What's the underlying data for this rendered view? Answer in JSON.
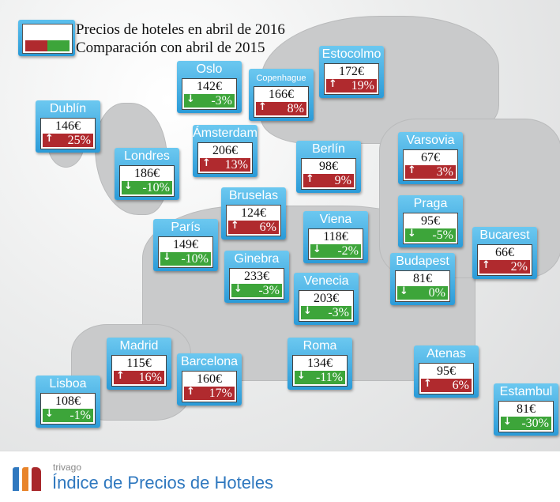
{
  "legend": {
    "price_label": "Precios de hoteles en abril de 2016",
    "comparison_label": "Comparación con abril de 2015",
    "colors": {
      "increase": "#b02a2e",
      "decrease": "#3da53a",
      "card": "#2b9bd8"
    }
  },
  "cities": [
    {
      "name": "Dublín",
      "price": "146€",
      "change": "25%",
      "direction": "up"
    },
    {
      "name": "Oslo",
      "price": "142€",
      "change": "-3%",
      "direction": "down"
    },
    {
      "name": "Copenhague",
      "price": "166€",
      "change": "8%",
      "direction": "up"
    },
    {
      "name": "Estocolmo",
      "price": "172€",
      "change": "19%",
      "direction": "up"
    },
    {
      "name": "Ámsterdam",
      "price": "206€",
      "change": "13%",
      "direction": "up"
    },
    {
      "name": "Londres",
      "price": "186€",
      "change": "-10%",
      "direction": "down"
    },
    {
      "name": "Berlín",
      "price": "98€",
      "change": "9%",
      "direction": "up"
    },
    {
      "name": "Varsovia",
      "price": "67€",
      "change": "3%",
      "direction": "up"
    },
    {
      "name": "Bruselas",
      "price": "124€",
      "change": "6%",
      "direction": "up"
    },
    {
      "name": "Viena",
      "price": "118€",
      "change": "-2%",
      "direction": "down"
    },
    {
      "name": "Praga",
      "price": "95€",
      "change": "-5%",
      "direction": "down"
    },
    {
      "name": "París",
      "price": "149€",
      "change": "-10%",
      "direction": "down"
    },
    {
      "name": "Bucarest",
      "price": "66€",
      "change": "2%",
      "direction": "up"
    },
    {
      "name": "Ginebra",
      "price": "233€",
      "change": "-3%",
      "direction": "down"
    },
    {
      "name": "Budapest",
      "price": "81€",
      "change": "0%",
      "direction": "down"
    },
    {
      "name": "Venecia",
      "price": "203€",
      "change": "-3%",
      "direction": "down"
    },
    {
      "name": "Madrid",
      "price": "115€",
      "change": "16%",
      "direction": "up"
    },
    {
      "name": "Barcelona",
      "price": "160€",
      "change": "17%",
      "direction": "up"
    },
    {
      "name": "Roma",
      "price": "134€",
      "change": "-11%",
      "direction": "down"
    },
    {
      "name": "Atenas",
      "price": "95€",
      "change": "6%",
      "direction": "up"
    },
    {
      "name": "Lisboa",
      "price": "108€",
      "change": "-1%",
      "direction": "down"
    },
    {
      "name": "Estambul",
      "price": "81€",
      "change": "-30%",
      "direction": "down"
    }
  ],
  "footer": {
    "brand": "trivago",
    "title": "Índice de Precios de Hoteles",
    "logo_colors": [
      "#2f78bf",
      "#e8842a",
      "#a8282b"
    ]
  }
}
